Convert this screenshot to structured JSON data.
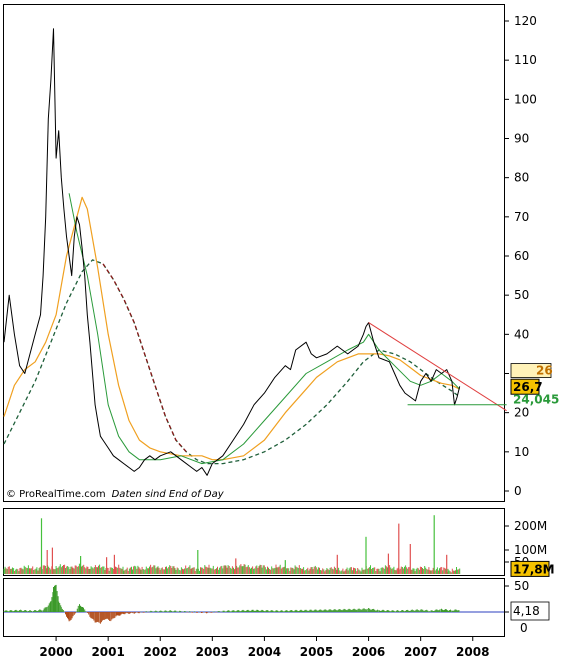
{
  "credit": {
    "prefix": "© ProRealTime.com",
    "suffix": "Daten sind End of Day"
  },
  "colors": {
    "price": "#000000",
    "ma_fast": "#2a9a3a",
    "ma_mid": "#f0a020",
    "ma_slow": "#1f5f3a",
    "trend_line": "#e04040",
    "support_line": "#2a9a3a",
    "volume_up": "#46c03c",
    "volume_down": "#e05050",
    "tag_price_bg": "#f5c200",
    "tag_mid_bg": "#fff2b8",
    "tag_mid_fg": "#c07000",
    "tag_low_fg": "#2a9a3a",
    "osc_line": "#2b3fbf",
    "osc_pos": "#3c9a2a",
    "osc_neg": "#b04a18"
  },
  "chart_data": [
    {
      "type": "line",
      "panel": "price",
      "ylim": [
        0,
        120
      ],
      "y_ticks": [
        "0",
        "10",
        "20",
        "30",
        "40",
        "50",
        "60",
        "70",
        "80",
        "90",
        "100",
        "110",
        "120"
      ],
      "xlim": [
        1999.0,
        2008.6
      ],
      "x_ticks": [
        "2000",
        "2001",
        "2002",
        "2003",
        "2004",
        "2005",
        "2006",
        "2007",
        "2008"
      ],
      "grid": false,
      "last_labels": {
        "price": "26,7",
        "ma_mid": "26",
        "ma_slow": "24,045"
      },
      "series": [
        {
          "role": "price",
          "x": [
            1999.0,
            1999.1,
            1999.2,
            1999.3,
            1999.4,
            1999.5,
            1999.6,
            1999.7,
            1999.75,
            1999.8,
            1999.85,
            1999.9,
            1999.95,
            2000.0,
            2000.05,
            2000.1,
            2000.15,
            2000.2,
            2000.25,
            2000.3,
            2000.35,
            2000.4,
            2000.45,
            2000.5,
            2000.55,
            2000.6,
            2000.65,
            2000.7,
            2000.75,
            2000.8,
            2000.85,
            2000.9,
            2000.95,
            2001.0,
            2001.1,
            2001.2,
            2001.3,
            2001.4,
            2001.5,
            2001.6,
            2001.7,
            2001.8,
            2001.9,
            2002.0,
            2002.2,
            2002.4,
            2002.6,
            2002.7,
            2002.8,
            2002.9,
            2003.0,
            2003.2,
            2003.4,
            2003.6,
            2003.8,
            2004.0,
            2004.2,
            2004.4,
            2004.5,
            2004.6,
            2004.8,
            2004.9,
            2005.0,
            2005.2,
            2005.4,
            2005.6,
            2005.8,
            2005.9,
            2005.95,
            2006.0,
            2006.1,
            2006.2,
            2006.4,
            2006.5,
            2006.6,
            2006.7,
            2006.8,
            2006.9,
            2007.0,
            2007.1,
            2007.2,
            2007.3,
            2007.4,
            2007.5,
            2007.6,
            2007.65,
            2007.7,
            2007.75
          ],
          "values": [
            38,
            50,
            40,
            32,
            30,
            35,
            40,
            45,
            55,
            70,
            95,
            105,
            118,
            85,
            92,
            80,
            72,
            65,
            60,
            55,
            65,
            70,
            68,
            62,
            55,
            45,
            38,
            30,
            22,
            18,
            14,
            13,
            12,
            11,
            9,
            8,
            7,
            6,
            5,
            6,
            8,
            9,
            8,
            9,
            10,
            8,
            6,
            5,
            6,
            4,
            7,
            9,
            13,
            17,
            22,
            25,
            29,
            32,
            31,
            36,
            38,
            35,
            34,
            35,
            37,
            35,
            37,
            40,
            42,
            43,
            38,
            34,
            33,
            30,
            27,
            25,
            24,
            23,
            28,
            30,
            28,
            31,
            30,
            31,
            28,
            22,
            24,
            26.7
          ]
        },
        {
          "role": "ma_fast",
          "x": [
            2000.25,
            2000.4,
            2000.6,
            2000.8,
            2001.0,
            2001.2,
            2001.4,
            2001.6,
            2001.8,
            2002.0,
            2002.4,
            2002.8,
            2003.2,
            2003.6,
            2004.0,
            2004.4,
            2004.8,
            2005.2,
            2005.6,
            2005.9,
            2006.0,
            2006.2,
            2006.5,
            2006.8,
            2007.0,
            2007.2,
            2007.4,
            2007.6,
            2007.75
          ],
          "values": [
            76,
            66,
            55,
            40,
            22,
            14,
            10,
            8,
            8,
            8,
            9,
            7,
            8,
            12,
            18,
            24,
            30,
            33,
            36,
            38,
            40,
            36,
            32,
            28,
            27,
            28,
            30,
            28,
            26
          ]
        },
        {
          "role": "ma_mid",
          "x": [
            1999.0,
            1999.2,
            1999.4,
            1999.6,
            1999.8,
            2000.0,
            2000.2,
            2000.4,
            2000.5,
            2000.6,
            2000.8,
            2001.0,
            2001.2,
            2001.4,
            2001.6,
            2001.8,
            2002.0,
            2002.4,
            2002.8,
            2003.0,
            2003.2,
            2003.6,
            2004.0,
            2004.4,
            2004.8,
            2005.0,
            2005.4,
            2005.8,
            2006.0,
            2006.2,
            2006.4,
            2006.6,
            2006.8,
            2007.0,
            2007.2,
            2007.4,
            2007.6,
            2007.75
          ],
          "values": [
            19,
            27,
            31,
            33,
            38,
            45,
            60,
            70,
            75,
            72,
            57,
            40,
            27,
            18,
            13,
            11,
            10,
            9,
            9,
            8,
            8,
            9,
            13,
            20,
            26,
            29,
            33,
            35,
            35,
            35,
            34.5,
            33.5,
            31.5,
            29.5,
            28.5,
            27.5,
            27,
            26
          ]
        },
        {
          "role": "ma_slow",
          "x": [
            1999.0,
            1999.3,
            1999.6,
            1999.9,
            2000.2,
            2000.5,
            2000.7,
            2000.9,
            2001.1,
            2001.3,
            2001.5,
            2001.7,
            2001.9,
            2002.1,
            2002.3,
            2002.5,
            2002.7,
            2002.9,
            2003.2,
            2003.6,
            2004.0,
            2004.4,
            2004.8,
            2005.2,
            2005.6,
            2005.9,
            2006.2,
            2006.5,
            2006.8,
            2007.0,
            2007.3,
            2007.6,
            2007.75
          ],
          "values": [
            12,
            20,
            28,
            38,
            48,
            56,
            59,
            58,
            54,
            49,
            43,
            35,
            27,
            19,
            13,
            10,
            8,
            7,
            7,
            8,
            10,
            13,
            17,
            22,
            28,
            33,
            36,
            35,
            33,
            31,
            28,
            25.5,
            24.045
          ]
        },
        {
          "role": "trend_line",
          "x": [
            2006.0,
            2008.65
          ],
          "values": [
            43,
            20.5
          ]
        },
        {
          "role": "support_line",
          "x": [
            2006.75,
            2008.65
          ],
          "values": [
            22,
            22
          ]
        }
      ]
    },
    {
      "type": "bar",
      "panel": "volume",
      "ylim": [
        0,
        250
      ],
      "y_ticks": [
        "50",
        "100M",
        "200M"
      ],
      "last_label": "17,8M",
      "x_start": 1999.0,
      "x_end": 2007.75,
      "baseline_values": [
        22,
        24,
        26,
        28,
        30,
        32,
        30,
        28,
        26,
        24,
        26,
        28,
        27,
        25,
        24,
        26,
        28,
        30,
        32,
        30,
        28,
        26,
        25,
        24,
        22,
        20,
        20,
        22,
        24,
        26,
        25,
        24,
        22,
        20,
        18
      ],
      "spikes": [
        {
          "x": 1999.72,
          "value": 232,
          "up": true
        },
        {
          "x": 1999.83,
          "value": 100,
          "up": false
        },
        {
          "x": 1999.93,
          "value": 110,
          "up": false
        },
        {
          "x": 2000.47,
          "value": 75,
          "up": true
        },
        {
          "x": 2000.97,
          "value": 70,
          "up": false
        },
        {
          "x": 2001.12,
          "value": 80,
          "up": false
        },
        {
          "x": 2002.72,
          "value": 100,
          "up": true
        },
        {
          "x": 2003.45,
          "value": 65,
          "up": false
        },
        {
          "x": 2004.4,
          "value": 58,
          "up": true
        },
        {
          "x": 2005.4,
          "value": 80,
          "up": false
        },
        {
          "x": 2005.95,
          "value": 155,
          "up": true
        },
        {
          "x": 2006.38,
          "value": 85,
          "up": false
        },
        {
          "x": 2006.58,
          "value": 210,
          "up": false
        },
        {
          "x": 2006.8,
          "value": 125,
          "up": false
        },
        {
          "x": 2007.26,
          "value": 245,
          "up": true
        },
        {
          "x": 2007.5,
          "value": 80,
          "up": false
        }
      ]
    },
    {
      "type": "area",
      "panel": "oscillator",
      "y_ticks": [
        "50",
        "0"
      ],
      "last_label": "4,18",
      "x_start": 1999.0,
      "x_end": 2007.75,
      "x": [
        1999.0,
        1999.3,
        1999.55,
        1999.75,
        1999.85,
        1999.9,
        1999.95,
        2000.0,
        2000.05,
        2000.1,
        2000.18,
        2000.25,
        2000.35,
        2000.45,
        2000.55,
        2000.65,
        2000.75,
        2000.85,
        2000.95,
        2001.05,
        2001.15,
        2001.3,
        2001.5,
        2001.8,
        2002.2,
        2002.6,
        2002.9,
        2003.3,
        2003.8,
        2004.3,
        2004.8,
        2005.3,
        2005.8,
        2006.0,
        2006.2,
        2006.5,
        2006.8,
        2007.0,
        2007.2,
        2007.4,
        2007.6,
        2007.75
      ],
      "values": [
        2,
        3,
        2,
        4,
        12,
        20,
        45,
        50,
        18,
        10,
        -4,
        -18,
        -6,
        14,
        5,
        -8,
        -18,
        -20,
        -12,
        -16,
        -8,
        -3,
        -2,
        1,
        2,
        0,
        -1,
        2,
        3,
        2,
        3,
        4,
        5,
        6,
        3,
        2,
        3,
        4,
        2,
        5,
        3,
        4.18
      ]
    }
  ]
}
